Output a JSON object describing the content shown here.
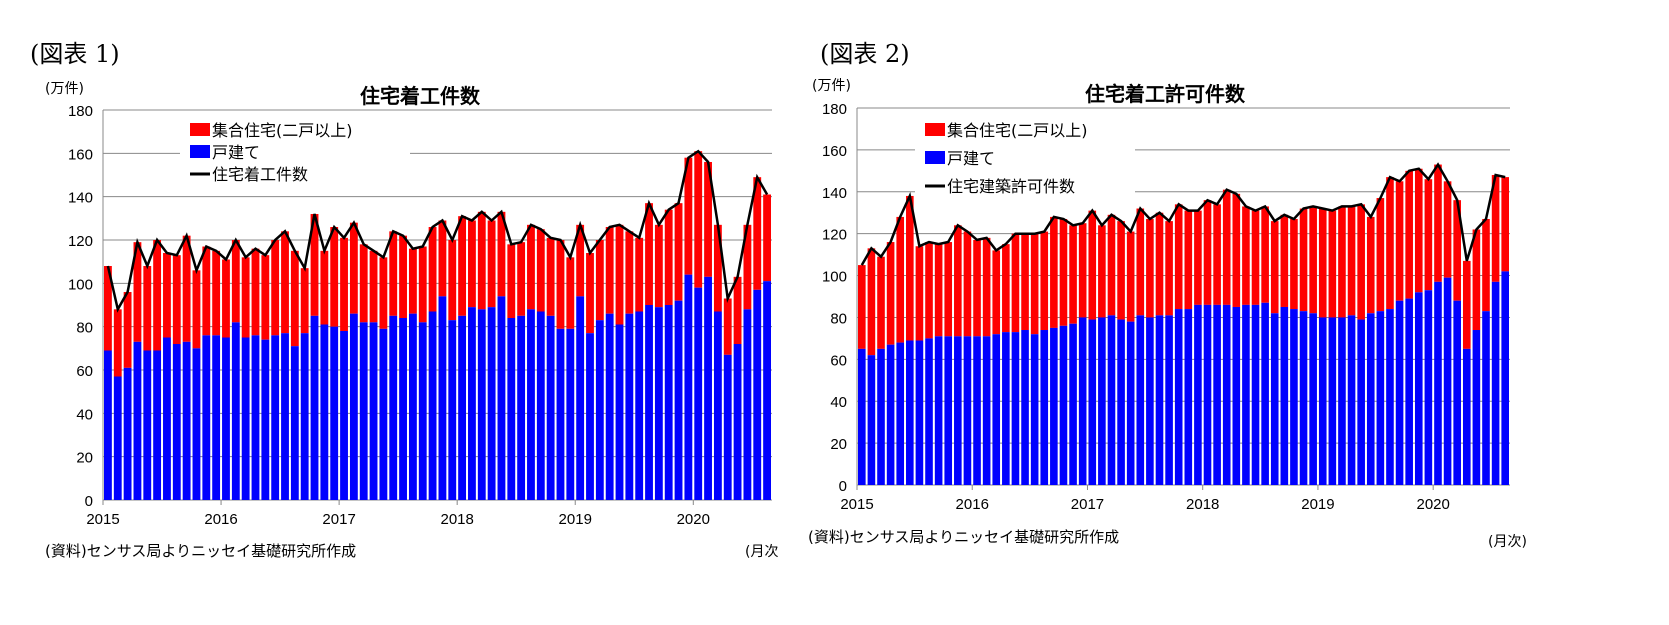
{
  "colors": {
    "multi": "#ff0000",
    "single": "#0000ff",
    "line": "#000000",
    "grid": "#888888"
  },
  "chart_data": [
    {
      "type": "bar",
      "stacked": true,
      "figure_label": "(図表 1)",
      "title": "住宅着工件数",
      "unit": "(万件)",
      "ylim": [
        0,
        180
      ],
      "yticks": [
        0,
        20,
        40,
        60,
        80,
        100,
        120,
        140,
        160,
        180
      ],
      "xticks": [
        "2015",
        "2016",
        "2017",
        "2018",
        "2019",
        "2020"
      ],
      "freq_note": "(月次",
      "start": "2015-01",
      "grid": true,
      "legend": "top-left",
      "series": [
        {
          "name": "集合住宅(二戸以上)",
          "kind": "bar",
          "color": "#ff0000"
        },
        {
          "name": "戸建て",
          "kind": "bar",
          "color": "#0000ff",
          "values": [
            69,
            57,
            61,
            73,
            69,
            69,
            75,
            72,
            73,
            70,
            76,
            76,
            75,
            82,
            75,
            76,
            74,
            76,
            77,
            71,
            77,
            85,
            81,
            80,
            78,
            86,
            82,
            82,
            79,
            85,
            84,
            86,
            82,
            87,
            94,
            83,
            85,
            89,
            88,
            89,
            94,
            84,
            85,
            88,
            87,
            85,
            79,
            79,
            94,
            77,
            83,
            86,
            81,
            86,
            87,
            90,
            89,
            90,
            92,
            104,
            98,
            103,
            87,
            67,
            72,
            88,
            97,
            101
          ]
        },
        {
          "name": "住宅着工件数",
          "kind": "line",
          "color": "#000000",
          "values": [
            108,
            88,
            96,
            119,
            108,
            120,
            114,
            113,
            122,
            106,
            117,
            115,
            111,
            120,
            112,
            116,
            113,
            120,
            124,
            115,
            107,
            132,
            115,
            126,
            121,
            128,
            118,
            115,
            112,
            124,
            122,
            116,
            117,
            126,
            129,
            120,
            131,
            129,
            133,
            129,
            133,
            118,
            119,
            127,
            125,
            121,
            120,
            112,
            127,
            114,
            120,
            126,
            127,
            124,
            121,
            137,
            127,
            134,
            137,
            158,
            161,
            156,
            127,
            93,
            103,
            127,
            149,
            141
          ]
        }
      ],
      "source": "(資料)センサス局よりニッセイ基礎研究所作成"
    },
    {
      "type": "bar",
      "stacked": true,
      "figure_label": "(図表 2)",
      "title": "住宅着工許可件数",
      "unit": "(万件)",
      "ylim": [
        0,
        180
      ],
      "yticks": [
        0,
        20,
        40,
        60,
        80,
        100,
        120,
        140,
        160,
        180
      ],
      "xticks": [
        "2015",
        "2016",
        "2017",
        "2018",
        "2019",
        "2020"
      ],
      "freq_note": "(月次)",
      "start": "2015-01",
      "grid": true,
      "legend": "top-left",
      "series": [
        {
          "name": "集合住宅(二戸以上)",
          "kind": "bar",
          "color": "#ff0000"
        },
        {
          "name": "戸建て",
          "kind": "bar",
          "color": "#0000ff",
          "values": [
            65,
            62,
            65,
            67,
            68,
            69,
            69,
            70,
            71,
            71,
            71,
            71,
            71,
            71,
            72,
            73,
            73,
            74,
            72,
            74,
            75,
            76,
            77,
            80,
            79,
            80,
            81,
            79,
            78,
            81,
            80,
            81,
            81,
            84,
            84,
            86,
            86,
            86,
            86,
            85,
            86,
            86,
            87,
            82,
            85,
            84,
            83,
            82,
            80,
            80,
            80,
            81,
            79,
            82,
            83,
            84,
            88,
            89,
            92,
            93,
            97,
            99,
            88,
            65,
            74,
            83,
            97,
            102
          ]
        },
        {
          "name": "住宅建築許可件数",
          "kind": "line",
          "color": "#000000",
          "values": [
            105,
            113,
            109,
            116,
            128,
            138,
            114,
            116,
            115,
            116,
            124,
            121,
            117,
            118,
            112,
            115,
            120,
            120,
            120,
            121,
            128,
            127,
            124,
            125,
            131,
            124,
            129,
            126,
            121,
            132,
            127,
            130,
            126,
            134,
            131,
            131,
            136,
            134,
            141,
            139,
            133,
            131,
            133,
            126,
            129,
            127,
            132,
            133,
            132,
            131,
            133,
            133,
            134,
            128,
            137,
            147,
            145,
            150,
            151,
            146,
            153,
            145,
            136,
            107,
            122,
            127,
            148,
            147
          ]
        }
      ],
      "source": "(資料)センサス局よりニッセイ基礎研究所作成"
    }
  ]
}
